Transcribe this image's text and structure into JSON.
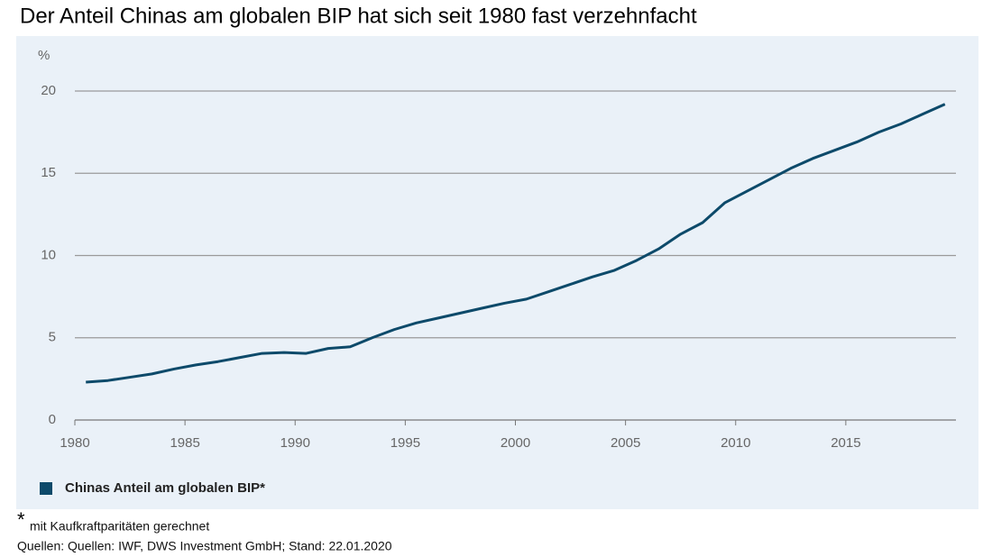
{
  "chart_data": {
    "type": "line",
    "title": "Der Anteil Chinas am globalen BIP hat sich seit 1980 fast verzehnfacht",
    "y_label": "%",
    "x": [
      1980.5,
      1981.5,
      1982.5,
      1983.5,
      1984.5,
      1985.5,
      1986.5,
      1987.5,
      1988.5,
      1989.5,
      1990.5,
      1991.5,
      1992.5,
      1993.5,
      1994.5,
      1995.5,
      1996.5,
      1997.5,
      1998.5,
      1999.5,
      2000.5,
      2001.5,
      2002.5,
      2003.5,
      2004.5,
      2005.5,
      2006.5,
      2007.5,
      2008.5,
      2009.5,
      2010.5,
      2011.5,
      2012.5,
      2013.5,
      2014.5,
      2015.5,
      2016.5,
      2017.5,
      2018.5,
      2019.5
    ],
    "series": [
      {
        "name": "Chinas Anteil am globalen BIP*",
        "color": "#0d4a6a",
        "values": [
          2.3,
          2.4,
          2.6,
          2.8,
          3.1,
          3.35,
          3.55,
          3.8,
          4.05,
          4.1,
          4.05,
          4.35,
          4.45,
          5.0,
          5.5,
          5.9,
          6.2,
          6.5,
          6.8,
          7.1,
          7.35,
          7.8,
          8.25,
          8.7,
          9.1,
          9.7,
          10.4,
          11.3,
          12.0,
          13.2,
          13.9,
          14.6,
          15.3,
          15.9,
          16.4,
          16.9,
          17.5,
          18.0,
          18.6,
          19.2
        ]
      }
    ],
    "xlim": [
      1980,
      2020
    ],
    "xticks": [
      1980,
      1985,
      1990,
      1995,
      2000,
      2005,
      2010,
      2015
    ],
    "ylim": [
      0,
      20
    ],
    "yticks": [
      0,
      5,
      10,
      15,
      20
    ],
    "grid": true,
    "footnote_marker": "*",
    "footnote": "mit Kaufkraftparitäten gerechnet",
    "source": "Quellen: Quellen: IWF, DWS Investment GmbH; Stand: 22.01.2020"
  }
}
